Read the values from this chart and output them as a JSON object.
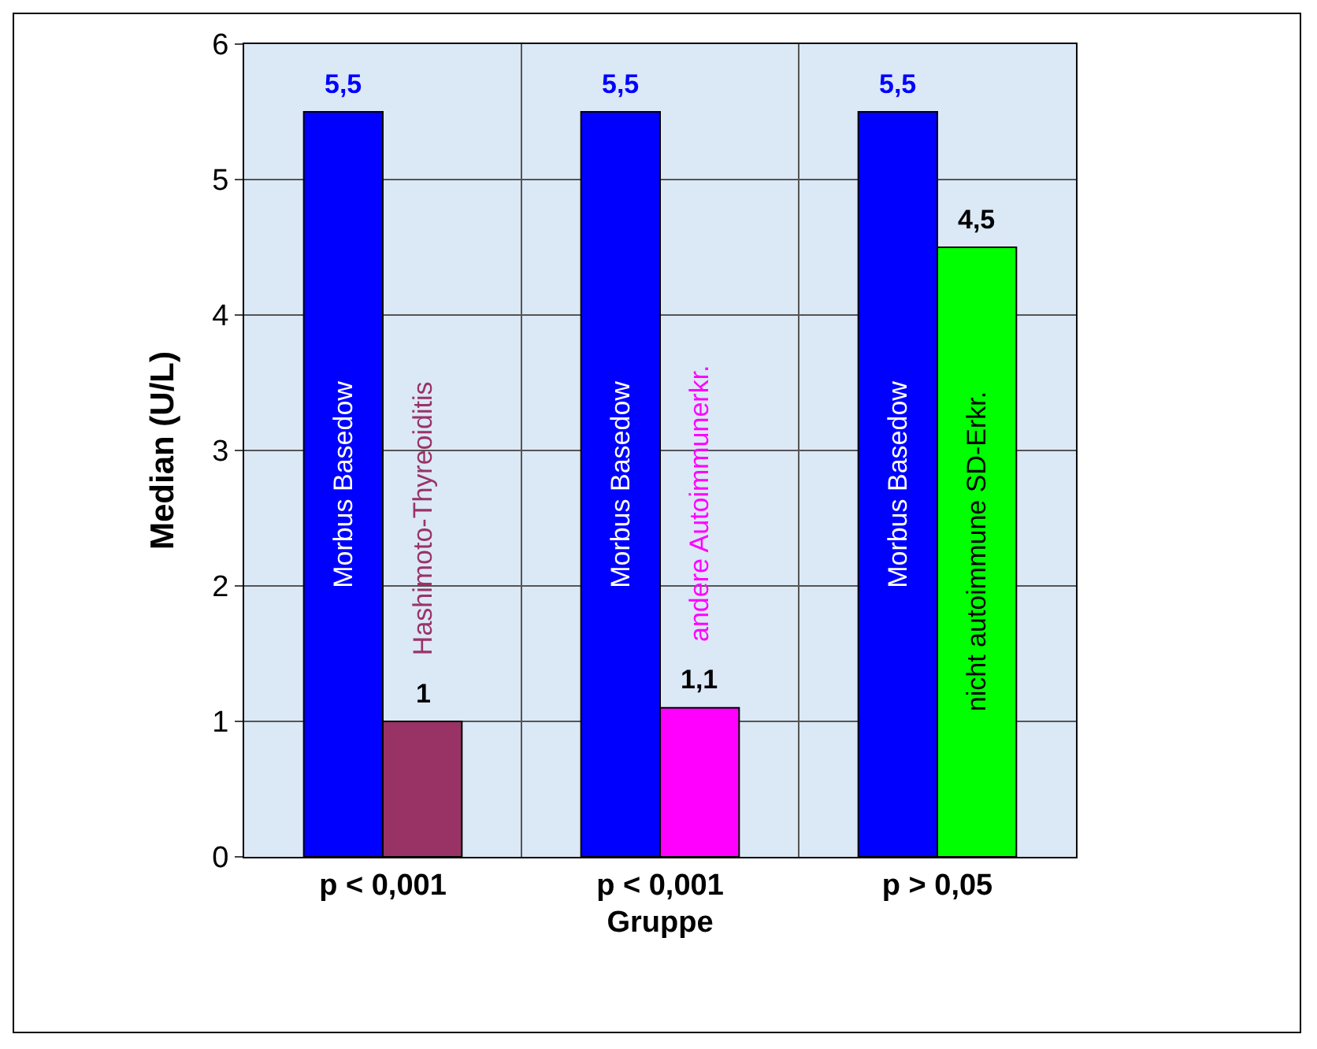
{
  "chart_data": {
    "type": "bar",
    "xlabel": "Gruppe",
    "ylabel": "Median (U/L)",
    "categories": [
      "p < 0,001",
      "p < 0,001",
      "p > 0,05"
    ],
    "series": [
      {
        "name": "Morbus Basedow",
        "color": "#0000ff",
        "values": [
          5.5,
          5.5,
          5.5
        ],
        "value_labels": [
          "5,5",
          "5,5",
          "5,5"
        ]
      },
      {
        "name": "Hashimoto-Thyreoiditis",
        "color": "#993366",
        "values": [
          1,
          null,
          null
        ],
        "value_labels": [
          "1",
          null,
          null
        ]
      },
      {
        "name": "andere Autoimmunerkr.",
        "color": "#ff00ff",
        "values": [
          null,
          1.1,
          null
        ],
        "value_labels": [
          null,
          "1,1",
          null
        ]
      },
      {
        "name": "nicht autoimmune SD-Erkr.",
        "color": "#00ff00",
        "values": [
          null,
          null,
          4.5
        ],
        "value_labels": [
          null,
          null,
          "4,5"
        ]
      }
    ],
    "ylim": [
      0,
      6
    ],
    "yticks": [
      0,
      1,
      2,
      3,
      4,
      5,
      6
    ],
    "grid": true,
    "legend": false
  }
}
